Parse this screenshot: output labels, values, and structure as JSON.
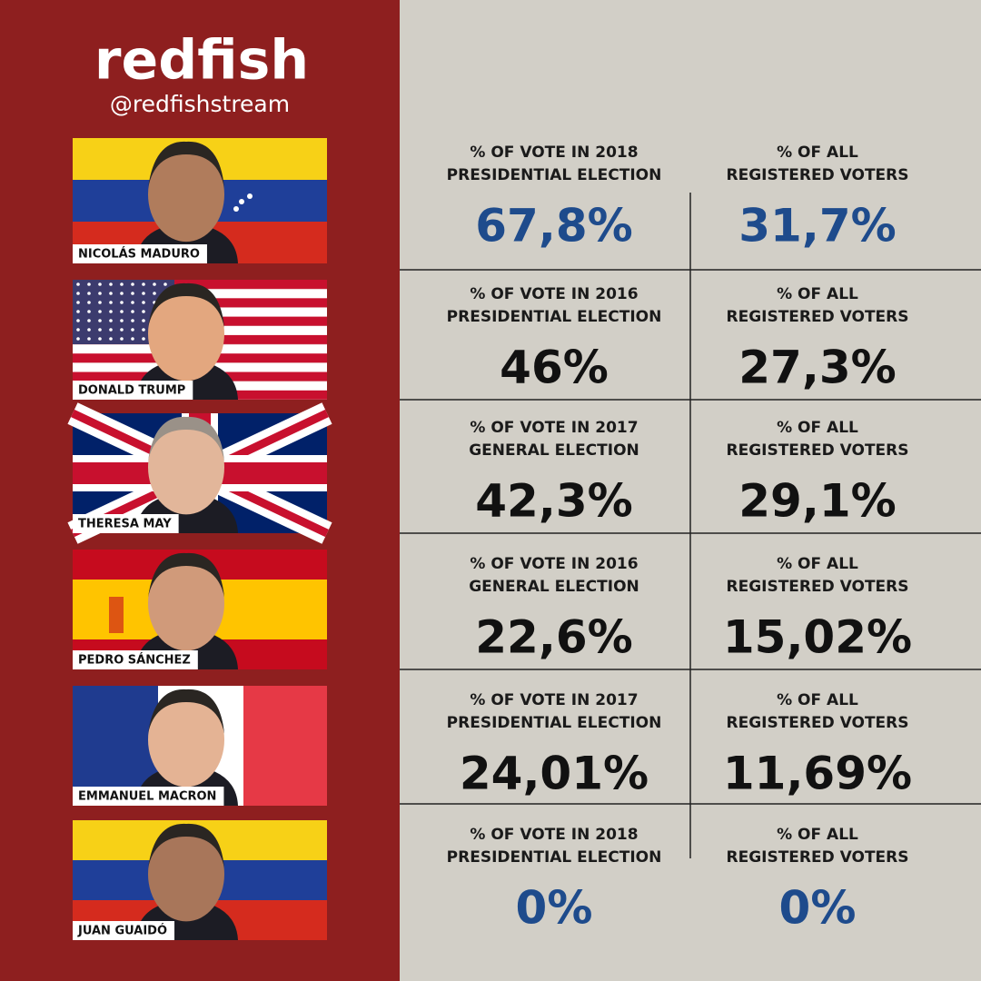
{
  "brand": {
    "logo": "redfish",
    "handle": "@redfishstream"
  },
  "rows": [
    {
      "name": "NICOLÁS MADURO",
      "vote_label": [
        "% OF VOTE IN 2018",
        "PRESIDENTIAL ELECTION"
      ],
      "vote_value": "67,8%",
      "reg_label": [
        "% OF ALL",
        "REGISTERED VOTERS"
      ],
      "reg_value": "31,7%",
      "value_color": "#1e4b8c"
    },
    {
      "name": "DONALD TRUMP",
      "vote_label": [
        "% OF VOTE IN 2016",
        "PRESIDENTIAL ELECTION"
      ],
      "vote_value": "46%",
      "reg_label": [
        "% OF ALL",
        "REGISTERED VOTERS"
      ],
      "reg_value": "27,3%",
      "value_color": "#111111"
    },
    {
      "name": "THERESA MAY",
      "vote_label": [
        "% OF VOTE IN 2017",
        "GENERAL ELECTION"
      ],
      "vote_value": "42,3%",
      "reg_label": [
        "% OF ALL",
        "REGISTERED VOTERS"
      ],
      "reg_value": "29,1%",
      "value_color": "#111111"
    },
    {
      "name": "PEDRO SÁNCHEZ",
      "vote_label": [
        "% OF VOTE IN 2016",
        "GENERAL ELECTION"
      ],
      "vote_value": "22,6%",
      "reg_label": [
        "% OF ALL",
        "REGISTERED VOTERS"
      ],
      "reg_value": "15,02%",
      "value_color": "#111111"
    },
    {
      "name": "EMMANUEL MACRON",
      "vote_label": [
        "% OF VOTE IN 2017",
        "PRESIDENTIAL ELECTION"
      ],
      "vote_value": "24,01%",
      "reg_label": [
        "% OF ALL",
        "REGISTERED VOTERS"
      ],
      "reg_value": "11,69%",
      "value_color": "#111111"
    },
    {
      "name": "JUAN GUAIDÓ",
      "vote_label": [
        "% OF VOTE IN 2018",
        "PRESIDENTIAL ELECTION"
      ],
      "vote_value": "0%",
      "reg_label": [
        "% OF ALL",
        "REGISTERED VOTERS"
      ],
      "reg_value": "0%",
      "value_color": "#1e4b8c"
    }
  ]
}
